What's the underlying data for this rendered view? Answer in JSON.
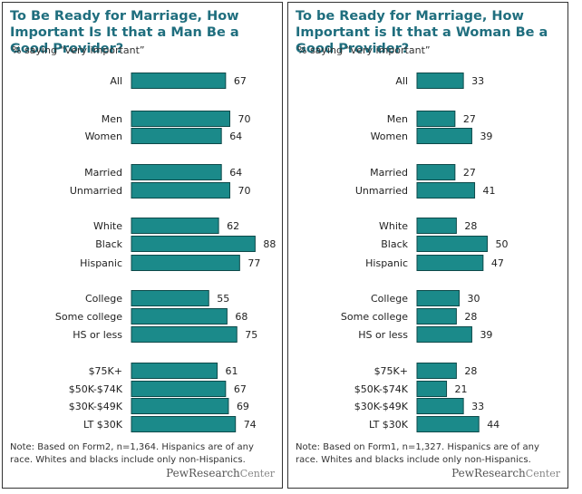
{
  "colors": {
    "bar": "#1b8a8a",
    "bar_stroke": "#0e4a4a",
    "title": "#1f6e7e"
  },
  "panels": [
    {
      "title": "To Be Ready for Marriage, How Important Is It that a Man Be a Good Provider?",
      "subtitle": "% saying  “very important”",
      "note": "Note: Based on Form2, n=1,364. Hispanics are of any race. Whites and blacks include only non-Hispanics.",
      "logo_bold": "PewResearch",
      "logo_light": "Center"
    },
    {
      "title": "To be Ready for Marriage, How Important is It that a Woman Be a Good Provider?",
      "subtitle": "% saying  “very important”",
      "note": "Note: Based on Form1, n=1,327. Hispanics are of any race. Whites and blacks include only non-Hispanics.",
      "logo_bold": "PewResearch",
      "logo_light": "Center"
    }
  ],
  "chart_data": [
    {
      "type": "bar",
      "orientation": "horizontal",
      "title": "To Be Ready for Marriage, How Important Is It that a Man Be a Good Provider?",
      "subtitle": "% saying  “very important”",
      "xlim": [
        0,
        100
      ],
      "categories": [
        "All",
        "Men",
        "Women",
        "Married",
        "Unmarried",
        "White",
        "Black",
        "Hispanic",
        "College",
        "Some college",
        "HS or less",
        "$75K+",
        "$50K-$74K",
        "$30K-$49K",
        "LT $30K"
      ],
      "groups": [
        [
          0
        ],
        [
          1,
          2
        ],
        [
          3,
          4
        ],
        [
          5,
          6,
          7
        ],
        [
          8,
          9,
          10
        ],
        [
          11,
          12,
          13,
          14
        ]
      ],
      "values": [
        67,
        70,
        64,
        64,
        70,
        62,
        88,
        77,
        55,
        68,
        75,
        61,
        67,
        69,
        74
      ]
    },
    {
      "type": "bar",
      "orientation": "horizontal",
      "title": "To be Ready for Marriage, How Important is It that a Woman Be a Good Provider?",
      "subtitle": "% saying  “very important”",
      "xlim": [
        0,
        100
      ],
      "categories": [
        "All",
        "Men",
        "Women",
        "Married",
        "Unmarried",
        "White",
        "Black",
        "Hispanic",
        "College",
        "Some college",
        "HS or less",
        "$75K+",
        "$50K-$74K",
        "$30K-$49K",
        "LT $30K"
      ],
      "groups": [
        [
          0
        ],
        [
          1,
          2
        ],
        [
          3,
          4
        ],
        [
          5,
          6,
          7
        ],
        [
          8,
          9,
          10
        ],
        [
          11,
          12,
          13,
          14
        ]
      ],
      "values": [
        33,
        27,
        39,
        27,
        41,
        28,
        50,
        47,
        30,
        28,
        39,
        28,
        21,
        33,
        44
      ]
    }
  ]
}
